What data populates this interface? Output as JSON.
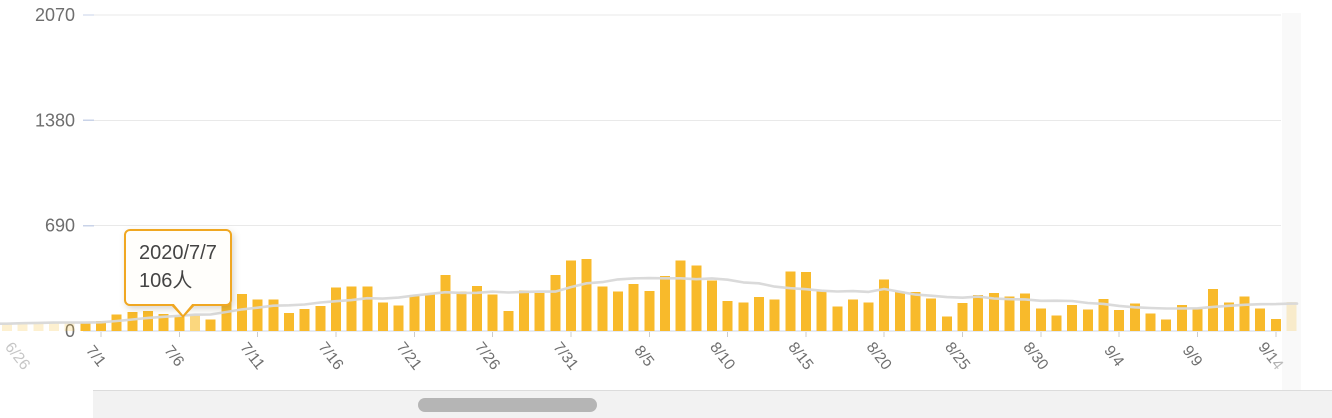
{
  "tooltip": {
    "date": "2020/7/7",
    "value": "106人"
  },
  "colors": {
    "bar": "#f8ba2b",
    "bar_highlight": "#fbd77e",
    "ma_line": "#d8d8d8",
    "grid": "#e9e9e9",
    "axis_line": "#ccd6ea",
    "grid_accent": "#c9d3e8",
    "tick": "#cccccc",
    "axis_label": "#6e6e6e",
    "axis_label_faded": "#cfcfcf",
    "tooltip_border": "#f0a721",
    "tooltip_bg": "#fffefb",
    "tooltip_text": "#444444",
    "scroll_track": "#f2f2f2",
    "scroll_thumb": "#b5b5b5",
    "edge_band": "#f9f9f9"
  },
  "chart_data": {
    "type": "bar",
    "title": "",
    "unit_suffix": "人",
    "ylim": [
      0,
      2070
    ],
    "y_ticks": [
      0,
      690,
      1380,
      2070
    ],
    "grid": true,
    "legend": false,
    "overlay_line": "7-day moving average derived from values",
    "highlighted_x": "7/7",
    "visible_range": [
      "7/1",
      "9/14"
    ],
    "faded_out_of_range_bars": true,
    "x_tick_labels": [
      "6/26",
      "7/1",
      "7/6",
      "7/11",
      "7/16",
      "7/21",
      "7/26",
      "7/31",
      "8/5",
      "8/10",
      "8/15",
      "8/20",
      "8/25",
      "8/30",
      "9/4",
      "9/9",
      "9/14"
    ],
    "x": [
      "6/25",
      "6/26",
      "6/27",
      "6/28",
      "6/29",
      "6/30",
      "7/1",
      "7/2",
      "7/3",
      "7/4",
      "7/5",
      "7/6",
      "7/7",
      "7/8",
      "7/9",
      "7/10",
      "7/11",
      "7/12",
      "7/13",
      "7/14",
      "7/15",
      "7/16",
      "7/17",
      "7/18",
      "7/19",
      "7/20",
      "7/21",
      "7/22",
      "7/23",
      "7/24",
      "7/25",
      "7/26",
      "7/27",
      "7/28",
      "7/29",
      "7/30",
      "7/31",
      "8/1",
      "8/2",
      "8/3",
      "8/4",
      "8/5",
      "8/6",
      "8/7",
      "8/8",
      "8/9",
      "8/10",
      "8/11",
      "8/12",
      "8/13",
      "8/14",
      "8/15",
      "8/16",
      "8/17",
      "8/18",
      "8/19",
      "8/20",
      "8/21",
      "8/22",
      "8/23",
      "8/24",
      "8/25",
      "8/26",
      "8/27",
      "8/28",
      "8/29",
      "8/30",
      "8/31",
      "9/1",
      "9/2",
      "9/3",
      "9/4",
      "9/5",
      "9/6",
      "9/7",
      "9/8",
      "9/9",
      "9/10",
      "9/11",
      "9/12",
      "9/13",
      "9/14",
      "9/15"
    ],
    "values": [
      48,
      54,
      57,
      60,
      58,
      54,
      67,
      107,
      124,
      131,
      111,
      102,
      106,
      75,
      224,
      243,
      206,
      206,
      119,
      143,
      165,
      286,
      293,
      290,
      188,
      168,
      237,
      238,
      366,
      260,
      295,
      239,
      131,
      266,
      250,
      367,
      463,
      472,
      292,
      258,
      309,
      263,
      360,
      462,
      429,
      331,
      197,
      188,
      222,
      206,
      389,
      385,
      260,
      161,
      207,
      186,
      339,
      258,
      256,
      212,
      95,
      182,
      236,
      250,
      226,
      247,
      148,
      100,
      170,
      141,
      211,
      136,
      181,
      116,
      77,
      170,
      149,
      276,
      187,
      226,
      146,
      80,
      191
    ]
  }
}
